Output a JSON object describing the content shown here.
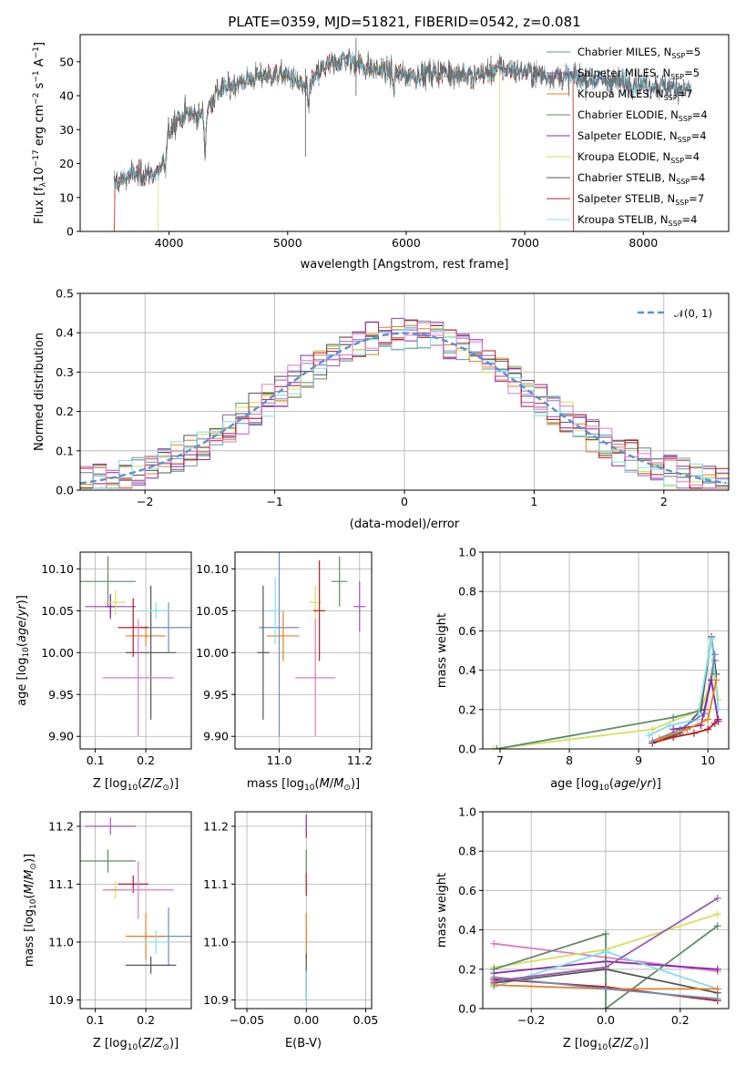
{
  "figure": {
    "title": "PLATE=0359, MJD=51821, FIBERID=0542, z=0.081"
  },
  "models": [
    {
      "name": "Chabrier MILES",
      "nssp": "5",
      "color": "#6c8ebf"
    },
    {
      "name": "Salpeter MILES",
      "nssp": "5",
      "color": "#9b59b6"
    },
    {
      "name": "Kroupa MILES",
      "nssp": "7",
      "color": "#e67e22"
    },
    {
      "name": "Chabrier ELODIE",
      "nssp": "4",
      "color": "#5d8a68"
    },
    {
      "name": "Salpeter ELODIE",
      "nssp": "4",
      "color": "#8e24aa"
    },
    {
      "name": "Kroupa ELODIE",
      "nssp": "4",
      "color": "#d4e157"
    },
    {
      "name": "Chabrier STELIB",
      "nssp": "4",
      "color": "#555555"
    },
    {
      "name": "Salpeter STELIB",
      "nssp": "7",
      "color": "#b71c1c"
    },
    {
      "name": "Kroupa STELIB",
      "nssp": "4",
      "color": "#80deea"
    }
  ],
  "chart_data": [
    {
      "id": "spectrum",
      "type": "line",
      "title": "PLATE=0359, MJD=51821, FIBERID=0542, z=0.081",
      "xlabel": "wavelength [Angstrom, rest frame]",
      "ylabel": "Flux [f_λ 10^-17 erg cm^-2 s^-1 A^-1]",
      "xlim": [
        3250,
        8720
      ],
      "ylim": [
        0,
        58
      ],
      "xticks": [
        "4000",
        "5000",
        "6000",
        "7000",
        "8000"
      ],
      "yticks": [
        "0",
        "10",
        "20",
        "30",
        "40",
        "50"
      ],
      "grid": false,
      "legend": "top-right",
      "continuum": [
        [
          3530,
          14
        ],
        [
          3700,
          17
        ],
        [
          3900,
          17
        ],
        [
          3950,
          21
        ],
        [
          4000,
          30
        ],
        [
          4100,
          35
        ],
        [
          4300,
          34
        ],
        [
          4400,
          41
        ],
        [
          4600,
          44
        ],
        [
          4800,
          46
        ],
        [
          5000,
          46
        ],
        [
          5150,
          42
        ],
        [
          5300,
          48
        ],
        [
          5500,
          51
        ],
        [
          5700,
          48
        ],
        [
          6000,
          46
        ],
        [
          6300,
          47
        ],
        [
          6600,
          46
        ],
        [
          6800,
          48
        ],
        [
          7000,
          47
        ],
        [
          7200,
          46
        ],
        [
          7500,
          45
        ],
        [
          7800,
          44
        ],
        [
          8100,
          43
        ],
        [
          8400,
          42
        ]
      ],
      "features": [
        [
          3934,
          17
        ],
        [
          3969,
          16
        ],
        [
          4102,
          31
        ],
        [
          4304,
          23
        ],
        [
          5175,
          36
        ],
        [
          5894,
          42
        ],
        [
          6563,
          44
        ]
      ],
      "model_cutoffs": [
        {
          "model": "Kroupa MILES",
          "min": 3540,
          "max": 7410
        },
        {
          "model": "Kroupa ELODIE",
          "min": 3910,
          "max": 6790
        },
        {
          "model": "Salpeter STELIB",
          "min": 3540,
          "max": 7410
        }
      ]
    },
    {
      "id": "residuals",
      "type": "line",
      "xlabel": "(data-model)/error",
      "ylabel": "Normed distribution",
      "xlim": [
        -2.5,
        2.5
      ],
      "ylim": [
        0,
        0.5
      ],
      "xticks": [
        "−2",
        "−1",
        "0",
        "1",
        "2"
      ],
      "yticks": [
        "0.0",
        "0.1",
        "0.2",
        "0.3",
        "0.4",
        "0.5"
      ],
      "grid": true,
      "legend": "top-right",
      "legend_label": "𝒩(0, 1)",
      "reference": "standard normal density",
      "bin_width": 0.1
    },
    {
      "id": "age-vs-Z",
      "type": "scatter",
      "xlabel": "Z [log10(Z/Z⊙)]",
      "ylabel": "age  [log10(age/yr)]",
      "xlim": [
        0.07,
        0.29
      ],
      "ylim": [
        9.885,
        10.12
      ],
      "xticks": [
        "0.1",
        "0.2"
      ],
      "yticks": [
        "9.90",
        "9.95",
        "10.00",
        "10.05",
        "10.10"
      ],
      "grid": true,
      "points": [
        {
          "model": "Chabrier MILES",
          "x": 0.245,
          "xerr": 0.055,
          "y": 10.03,
          "yerr": 0.03
        },
        {
          "model": "Salpeter MILES",
          "x": 0.13,
          "xerr": 0.05,
          "y": 10.055,
          "yerr": 0.012
        },
        {
          "model": "Kroupa MILES",
          "x": 0.2,
          "xerr": 0.04,
          "y": 10.02,
          "yerr": 0.012
        },
        {
          "model": "Chabrier ELODIE",
          "x": 0.125,
          "xerr": 0.055,
          "y": 10.085,
          "yerr": 0.03
        },
        {
          "model": "Salpeter ELODIE",
          "x": 0.13,
          "xerr": 0.01,
          "y": 10.055,
          "yerr": 0.015
        },
        {
          "model": "Kroupa ELODIE",
          "x": 0.14,
          "xerr": 0.02,
          "y": 10.06,
          "yerr": 0.015
        },
        {
          "model": "Chabrier STELIB",
          "x": 0.21,
          "xerr": 0.05,
          "y": 10.0,
          "yerr": 0.08
        },
        {
          "model": "Salpeter STELIB",
          "x": 0.175,
          "xerr": 0.03,
          "y": 10.03,
          "yerr": 0.035
        },
        {
          "model": "Kroupa STELIB",
          "x": 0.22,
          "xerr": 0.03,
          "y": 10.05,
          "yerr": 0.01
        },
        {
          "model": "pink",
          "x": 0.185,
          "xerr": 0.07,
          "y": 9.97,
          "yerr": 0.07
        }
      ]
    },
    {
      "id": "age-vs-mass",
      "type": "scatter",
      "xlabel": "mass [log10(M/M⊙)]",
      "ylabel": "",
      "xlim": [
        10.89,
        11.23
      ],
      "ylim": [
        9.885,
        10.12
      ],
      "xticks": [
        "11.0",
        "11.2"
      ],
      "yticks": [
        "9.90",
        "9.95",
        "10.00",
        "10.05",
        "10.10"
      ],
      "grid": true,
      "points": [
        {
          "model": "Chabrier MILES",
          "x": 11.0,
          "xerr": 0.05,
          "y": 10.03,
          "yerr": 0.13
        },
        {
          "model": "Salpeter MILES",
          "x": 11.2,
          "xerr": 0.015,
          "y": 10.055,
          "yerr": 0.03
        },
        {
          "model": "Kroupa MILES",
          "x": 11.01,
          "xerr": 0.04,
          "y": 10.02,
          "yerr": 0.03
        },
        {
          "model": "Chabrier ELODIE",
          "x": 11.15,
          "xerr": 0.02,
          "y": 10.085,
          "yerr": 0.03
        },
        {
          "model": "Kroupa ELODIE",
          "x": 11.09,
          "xerr": 0.015,
          "y": 10.06,
          "yerr": 0.02
        },
        {
          "model": "Chabrier STELIB",
          "x": 10.96,
          "xerr": 0.015,
          "y": 10.0,
          "yerr": 0.08
        },
        {
          "model": "Salpeter STELIB",
          "x": 11.1,
          "xerr": 0.015,
          "y": 10.05,
          "yerr": 0.06
        },
        {
          "model": "Kroupa STELIB",
          "x": 10.99,
          "xerr": 0.02,
          "y": 10.05,
          "yerr": 0.04
        },
        {
          "model": "pink",
          "x": 11.09,
          "xerr": 0.05,
          "y": 9.97,
          "yerr": 0.07
        }
      ]
    },
    {
      "id": "mass-weight-vs-age",
      "type": "line",
      "xlabel": "age  [log10(age/yr)]",
      "ylabel": "mass weight",
      "xlim": [
        6.75,
        10.3
      ],
      "ylim": [
        0,
        1.0
      ],
      "xticks": [
        "7",
        "8",
        "9",
        "10"
      ],
      "yticks": [
        "0.0",
        "0.2",
        "0.4",
        "0.6",
        "0.8",
        "1.0"
      ],
      "grid": true,
      "series": [
        {
          "model": "Kroupa ELODIE",
          "x": [
            6.9,
            9.2,
            9.9,
            10.1,
            10.15
          ],
          "y": [
            0.0,
            0.1,
            0.2,
            0.4,
            0.25
          ]
        },
        {
          "model": "Chabrier ELODIE",
          "x": [
            6.95,
            9.5,
            9.95,
            10.1
          ],
          "y": [
            0.0,
            0.16,
            0.2,
            0.45
          ]
        },
        {
          "model": "Chabrier STELIB",
          "x": [
            9.2,
            9.6,
            9.9,
            10.05,
            10.12
          ],
          "y": [
            0.03,
            0.08,
            0.2,
            0.57,
            0.38
          ]
        },
        {
          "model": "Salpeter STELIB",
          "x": [
            9.2,
            9.5,
            9.8,
            10.0,
            10.1,
            10.15
          ],
          "y": [
            0.03,
            0.06,
            0.08,
            0.1,
            0.13,
            0.15
          ]
        },
        {
          "model": "Kroupa STELIB",
          "x": [
            9.15,
            9.45,
            9.85,
            10.05,
            10.15
          ],
          "y": [
            0.07,
            0.12,
            0.15,
            0.56,
            0.2
          ]
        },
        {
          "model": "Chabrier MILES",
          "x": [
            9.2,
            9.6,
            9.95,
            10.1
          ],
          "y": [
            0.04,
            0.1,
            0.18,
            0.48
          ]
        },
        {
          "model": "Salpeter ELODIE",
          "x": [
            9.5,
            9.9,
            10.05,
            10.15
          ],
          "y": [
            0.1,
            0.12,
            0.35,
            0.14
          ]
        },
        {
          "model": "Kroupa MILES",
          "x": [
            9.3,
            9.7,
            10.0,
            10.12
          ],
          "y": [
            0.05,
            0.1,
            0.15,
            0.35
          ]
        }
      ]
    },
    {
      "id": "mass-vs-Z",
      "type": "scatter",
      "xlabel": "Z [log10(Z/Z⊙)]",
      "ylabel": "mass [log10(M/M⊙)]",
      "xlim": [
        0.07,
        0.29
      ],
      "ylim": [
        10.885,
        11.225
      ],
      "xticks": [
        "0.1",
        "0.2"
      ],
      "yticks": [
        "10.9",
        "11.0",
        "11.1",
        "11.2"
      ],
      "grid": true,
      "points": [
        {
          "model": "Chabrier MILES",
          "x": 0.245,
          "xerr": 0.055,
          "y": 11.01,
          "yerr": 0.05
        },
        {
          "model": "Salpeter MILES",
          "x": 0.13,
          "xerr": 0.05,
          "y": 11.2,
          "yerr": 0.015
        },
        {
          "model": "Kroupa MILES",
          "x": 0.2,
          "xerr": 0.04,
          "y": 11.01,
          "yerr": 0.04
        },
        {
          "model": "Chabrier ELODIE",
          "x": 0.125,
          "xerr": 0.055,
          "y": 11.14,
          "yerr": 0.02
        },
        {
          "model": "Kroupa ELODIE",
          "x": 0.14,
          "xerr": 0.02,
          "y": 11.09,
          "yerr": 0.015
        },
        {
          "model": "Chabrier STELIB",
          "x": 0.21,
          "xerr": 0.05,
          "y": 10.96,
          "yerr": 0.015
        },
        {
          "model": "Salpeter STELIB",
          "x": 0.175,
          "xerr": 0.03,
          "y": 11.1,
          "yerr": 0.015
        },
        {
          "model": "Kroupa STELIB",
          "x": 0.22,
          "xerr": 0.03,
          "y": 11.0,
          "yerr": 0.02
        },
        {
          "model": "pink",
          "x": 0.185,
          "xerr": 0.07,
          "y": 11.09,
          "yerr": 0.05
        }
      ]
    },
    {
      "id": "mass-vs-EBV",
      "type": "scatter",
      "xlabel": "E(B-V)",
      "ylabel": "",
      "xlim": [
        -0.06,
        0.055
      ],
      "ylim": [
        10.885,
        11.225
      ],
      "xticks": [
        "−0.05",
        "0.00",
        "0.05"
      ],
      "yticks": [
        "10.9",
        "11.0",
        "11.1",
        "11.2"
      ],
      "grid": true,
      "points": [
        {
          "model": "Salpeter ELODIE",
          "x": 0.0,
          "y": 11.2,
          "yerr": 0.02
        },
        {
          "model": "Chabrier ELODIE",
          "x": 0.0,
          "y": 11.14,
          "yerr": 0.02
        },
        {
          "model": "Salpeter STELIB",
          "x": 0.0,
          "y": 11.1,
          "yerr": 0.02
        },
        {
          "model": "Kroupa MILES",
          "x": 0.0,
          "y": 11.01,
          "yerr": 0.04
        },
        {
          "model": "Chabrier STELIB",
          "x": 0.0,
          "y": 10.94,
          "yerr": 0.04
        },
        {
          "model": "Kroupa STELIB",
          "x": 0.0,
          "y": 10.92,
          "yerr": 0.03
        }
      ]
    },
    {
      "id": "mass-weight-vs-Z",
      "type": "line",
      "xlabel": "Z [log10(Z/Z⊙)]",
      "ylabel": "mass weight",
      "xlim": [
        -0.33,
        0.33
      ],
      "ylim": [
        0,
        1.0
      ],
      "xticks": [
        "−0.2",
        "0.0",
        "0.2"
      ],
      "yticks": [
        "0.0",
        "0.2",
        "0.4",
        "0.6",
        "0.8",
        "1.0"
      ],
      "grid": true,
      "series": [
        {
          "model": "pink",
          "x": [
            -0.3,
            0.3
          ],
          "y": [
            0.33,
            0.19
          ]
        },
        {
          "model": "Kroupa ELODIE",
          "x": [
            -0.3,
            0.0,
            0.3
          ],
          "y": [
            0.21,
            0.3,
            0.48
          ]
        },
        {
          "model": "Salpeter ELODIE",
          "x": [
            -0.3,
            0.0,
            0.3
          ],
          "y": [
            0.18,
            0.24,
            0.2
          ]
        },
        {
          "model": "Chabrier ELODIE",
          "x": [
            -0.3,
            0.0,
            0.0,
            0.3
          ],
          "y": [
            0.2,
            0.38,
            0.0,
            0.42
          ]
        },
        {
          "model": "Kroupa STELIB",
          "x": [
            -0.3,
            0.0,
            0.3
          ],
          "y": [
            0.11,
            0.29,
            0.1
          ]
        },
        {
          "model": "Chabrier STELIB",
          "x": [
            -0.3,
            0.0,
            0.3
          ],
          "y": [
            0.13,
            0.2,
            0.08
          ]
        },
        {
          "model": "Salpeter STELIB",
          "x": [
            -0.3,
            0.0,
            0.3
          ],
          "y": [
            0.15,
            0.11,
            0.04
          ]
        },
        {
          "model": "Kroupa MILES",
          "x": [
            -0.3,
            0.0,
            0.3
          ],
          "y": [
            0.12,
            0.1,
            0.1
          ]
        },
        {
          "model": "Chabrier MILES",
          "x": [
            -0.3,
            0.0,
            0.3
          ],
          "y": [
            0.16,
            0.1,
            0.05
          ]
        },
        {
          "model": "Salpeter MILES",
          "x": [
            -0.3,
            0.0,
            0.3
          ],
          "y": [
            0.14,
            0.21,
            0.56
          ]
        }
      ]
    }
  ]
}
